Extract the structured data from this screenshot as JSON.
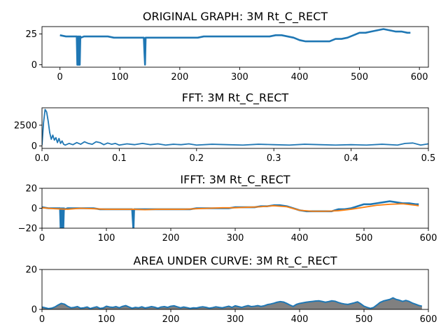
{
  "colors": {
    "line": "#1f77b4",
    "smooth": "#ff7f0e",
    "fill": "#808080"
  },
  "chart_data": [
    {
      "type": "line",
      "title": "ORIGINAL GRAPH: 3M Rt_C_RECT",
      "xlim": [
        -30,
        615
      ],
      "ylim": [
        -2,
        31
      ],
      "xticks": [
        "0",
        "100",
        "200",
        "300",
        "400",
        "500",
        "600"
      ],
      "xtick_values": [
        0,
        100,
        200,
        300,
        400,
        500,
        600
      ],
      "yticks": [
        "0",
        "25"
      ],
      "ytick_values": [
        0,
        25
      ],
      "series": [
        {
          "x": [
            0,
            10,
            20,
            28,
            29,
            30,
            31,
            32,
            33,
            34,
            35,
            40,
            50,
            60,
            70,
            80,
            90,
            100,
            110,
            120,
            130,
            140,
            141,
            142,
            143,
            144,
            150,
            160,
            170,
            180,
            190,
            200,
            210,
            220,
            230,
            240,
            250,
            260,
            270,
            280,
            290,
            300,
            310,
            320,
            330,
            340,
            350,
            360,
            370,
            380,
            390,
            400,
            410,
            420,
            430,
            440,
            450,
            460,
            470,
            480,
            490,
            500,
            510,
            520,
            530,
            540,
            550,
            560,
            570,
            580,
            585
          ],
          "values": [
            24,
            23,
            23,
            23,
            0,
            23,
            0,
            23,
            0,
            23,
            22,
            23,
            23,
            23,
            23,
            23,
            22,
            22,
            22,
            22,
            22,
            22,
            10,
            0,
            22,
            22,
            22,
            22,
            22,
            22,
            22,
            22,
            22,
            22,
            22,
            23,
            23,
            23,
            23,
            23,
            23,
            23,
            23,
            23,
            23,
            23,
            23,
            24,
            24,
            23,
            22,
            20,
            19,
            19,
            19,
            19,
            19,
            21,
            21,
            22,
            24,
            26,
            26,
            27,
            28,
            29,
            28,
            27,
            27,
            26,
            26
          ]
        }
      ]
    },
    {
      "type": "line",
      "title": "FFT: 3M Rt_C_RECT",
      "xlim": [
        0,
        0.5
      ],
      "ylim": [
        -300,
        4600
      ],
      "xticks": [
        "0.0",
        "0.1",
        "0.2",
        "0.3",
        "0.4",
        "0.5"
      ],
      "xtick_values": [
        0,
        0.1,
        0.2,
        0.3,
        0.4,
        0.5
      ],
      "yticks": [
        "0",
        "2500"
      ],
      "ytick_values": [
        0,
        2500
      ],
      "series": [
        {
          "x": [
            0,
            0.002,
            0.004,
            0.006,
            0.008,
            0.01,
            0.012,
            0.014,
            0.016,
            0.018,
            0.02,
            0.022,
            0.024,
            0.026,
            0.028,
            0.03,
            0.035,
            0.04,
            0.045,
            0.05,
            0.055,
            0.06,
            0.065,
            0.07,
            0.075,
            0.08,
            0.085,
            0.09,
            0.095,
            0.1,
            0.11,
            0.12,
            0.13,
            0.14,
            0.15,
            0.16,
            0.17,
            0.18,
            0.19,
            0.2,
            0.22,
            0.24,
            0.26,
            0.28,
            0.3,
            0.32,
            0.34,
            0.36,
            0.38,
            0.4,
            0.42,
            0.44,
            0.46,
            0.47,
            0.48,
            0.49,
            0.5
          ],
          "values": [
            100,
            2800,
            4400,
            4100,
            3000,
            1600,
            800,
            1300,
            700,
            1000,
            400,
            900,
            300,
            600,
            200,
            100,
            300,
            150,
            400,
            200,
            500,
            300,
            200,
            500,
            400,
            150,
            350,
            200,
            300,
            100,
            250,
            150,
            300,
            150,
            250,
            100,
            200,
            150,
            250,
            100,
            200,
            150,
            100,
            200,
            150,
            100,
            200,
            150,
            100,
            150,
            100,
            200,
            100,
            300,
            350,
            100,
            250
          ]
        }
      ]
    },
    {
      "type": "line",
      "title": "IFFT: 3M Rt_C_RECT",
      "xlim": [
        0,
        600
      ],
      "ylim": [
        -20,
        20
      ],
      "xticks": [
        "0",
        "100",
        "200",
        "300",
        "400",
        "500",
        "600"
      ],
      "xtick_values": [
        0,
        100,
        200,
        300,
        400,
        500,
        600
      ],
      "yticks": [
        "−20",
        "0",
        "20"
      ],
      "ytick_values": [
        -20,
        0,
        20
      ],
      "series": [
        {
          "name": "ifft",
          "x": [
            0,
            10,
            20,
            28,
            29,
            30,
            31,
            32,
            33,
            34,
            35,
            40,
            50,
            60,
            70,
            80,
            90,
            100,
            110,
            120,
            130,
            140,
            141,
            142,
            143,
            144,
            150,
            160,
            170,
            180,
            190,
            200,
            210,
            220,
            230,
            240,
            250,
            260,
            270,
            280,
            290,
            300,
            310,
            320,
            330,
            340,
            350,
            360,
            370,
            380,
            390,
            400,
            410,
            420,
            430,
            440,
            450,
            460,
            470,
            480,
            490,
            500,
            510,
            520,
            530,
            540,
            550,
            560,
            570,
            580,
            585
          ],
          "values": [
            1,
            0,
            0,
            0,
            -22,
            0,
            -22,
            0,
            -22,
            0,
            -1,
            0,
            0,
            0,
            0,
            0,
            -1,
            -1,
            -1,
            -1,
            -1,
            -1,
            -12,
            -22,
            -1,
            -1,
            -1,
            -1,
            -1,
            -1,
            -1,
            -1,
            -1,
            -1,
            -1,
            0,
            0,
            0,
            0,
            0,
            0,
            1,
            1,
            1,
            1,
            2,
            2,
            3,
            3,
            2,
            0,
            -2,
            -3,
            -3,
            -3,
            -3,
            -3,
            -1,
            -1,
            0,
            2,
            4,
            4,
            5,
            6,
            7,
            6,
            5,
            5,
            4,
            4
          ]
        },
        {
          "name": "smooth",
          "x": [
            0,
            20,
            40,
            60,
            80,
            100,
            120,
            140,
            160,
            180,
            200,
            220,
            240,
            260,
            280,
            300,
            320,
            340,
            360,
            380,
            400,
            420,
            440,
            460,
            480,
            500,
            520,
            540,
            560,
            580,
            585
          ],
          "values": [
            0.5,
            -0.5,
            -1,
            0,
            -0.5,
            -1,
            -1,
            -1,
            -1.5,
            -1,
            -1,
            -1,
            -0.5,
            0,
            0.5,
            0.5,
            1,
            1.5,
            2.5,
            1.5,
            -2,
            -3,
            -3,
            -2.5,
            -1,
            1,
            3,
            4,
            4.5,
            3,
            2.5
          ]
        }
      ]
    },
    {
      "type": "area",
      "title": "AREA UNDER CURVE: 3M Rt_C_RECT",
      "xlim": [
        0,
        600
      ],
      "ylim": [
        0,
        20
      ],
      "xticks": [
        "0",
        "100",
        "200",
        "300",
        "400",
        "500",
        "600"
      ],
      "xtick_values": [
        0,
        100,
        200,
        300,
        400,
        500,
        600
      ],
      "yticks": [
        "0",
        "20"
      ],
      "ytick_values": [
        0,
        20
      ],
      "series": [
        {
          "x": [
            0,
            5,
            10,
            15,
            20,
            25,
            30,
            35,
            40,
            45,
            50,
            55,
            60,
            65,
            70,
            75,
            80,
            85,
            90,
            95,
            100,
            105,
            110,
            115,
            120,
            125,
            130,
            135,
            140,
            145,
            150,
            155,
            160,
            165,
            170,
            175,
            180,
            185,
            190,
            195,
            200,
            205,
            210,
            215,
            220,
            225,
            230,
            235,
            240,
            245,
            250,
            255,
            260,
            265,
            270,
            275,
            280,
            285,
            290,
            295,
            300,
            305,
            310,
            315,
            320,
            325,
            330,
            335,
            340,
            345,
            350,
            355,
            360,
            365,
            370,
            375,
            380,
            385,
            390,
            395,
            400,
            405,
            410,
            415,
            420,
            425,
            430,
            435,
            440,
            445,
            450,
            455,
            460,
            465,
            470,
            475,
            480,
            485,
            490,
            495,
            500,
            505,
            510,
            515,
            520,
            525,
            530,
            535,
            540,
            545,
            550,
            555,
            560,
            565,
            570,
            575,
            580,
            585,
            590
          ],
          "values": [
            1.2,
            0.8,
            0.4,
            0.6,
            1.2,
            2.2,
            3.0,
            2.6,
            1.5,
            0.8,
            1.0,
            1.4,
            0.6,
            0.8,
            1.2,
            0.4,
            0.9,
            1.3,
            0.5,
            0.7,
            1.6,
            1.2,
            1.0,
            1.4,
            0.8,
            1.5,
            1.9,
            1.2,
            0.6,
            1.0,
            0.8,
            1.3,
            0.7,
            1.0,
            1.4,
            1.1,
            0.6,
            1.2,
            1.4,
            1.0,
            1.6,
            1.8,
            1.3,
            0.8,
            1.2,
            0.9,
            0.5,
            0.8,
            0.7,
            1.1,
            1.3,
            1.0,
            0.6,
            0.9,
            1.3,
            1.0,
            0.8,
            1.2,
            1.6,
            1.0,
            1.8,
            1.4,
            1.0,
            1.5,
            1.9,
            1.4,
            1.6,
            1.9,
            1.5,
            1.8,
            2.4,
            2.7,
            3.1,
            3.6,
            3.9,
            3.7,
            3.0,
            2.2,
            1.5,
            2.5,
            3.0,
            3.3,
            3.6,
            3.8,
            4.0,
            4.2,
            4.3,
            4.0,
            3.6,
            3.9,
            4.3,
            4.1,
            3.5,
            3.0,
            2.7,
            2.5,
            2.9,
            3.3,
            3.8,
            2.8,
            1.6,
            1.0,
            0.5,
            1.0,
            2.2,
            3.5,
            4.2,
            4.6,
            5.0,
            5.8,
            5.0,
            4.6,
            4.0,
            4.5,
            4.0,
            3.2,
            2.6,
            2.0,
            1.6
          ]
        }
      ]
    }
  ]
}
